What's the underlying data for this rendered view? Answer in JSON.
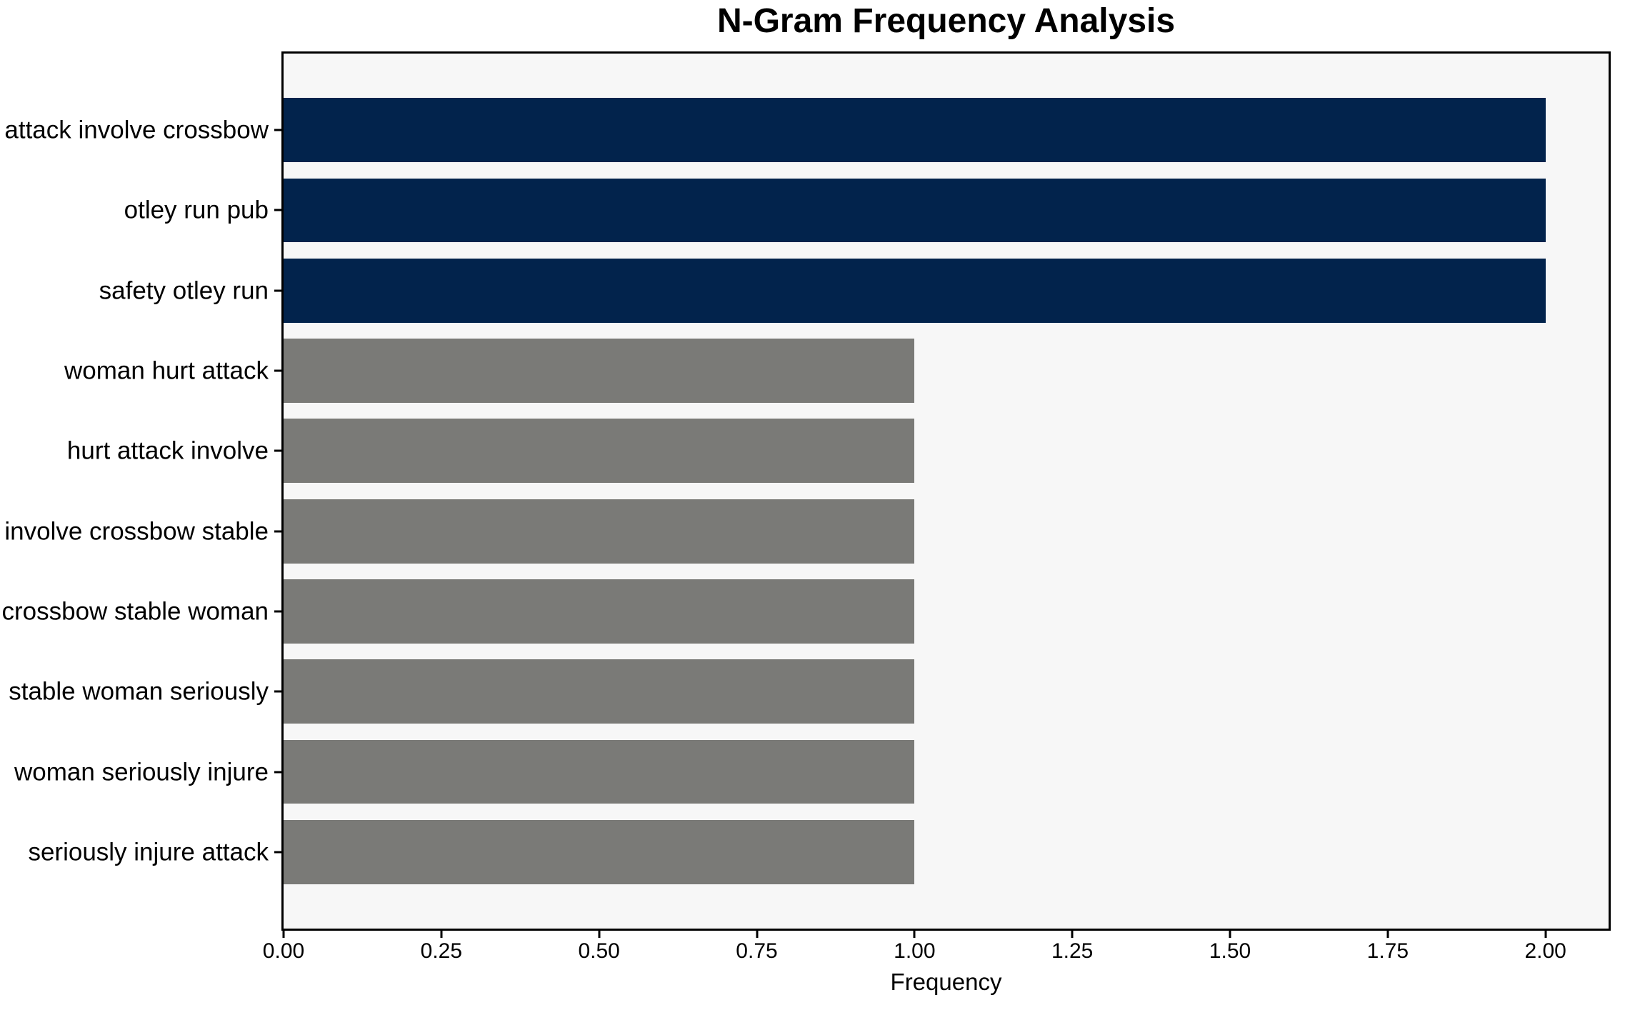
{
  "chart_data": {
    "type": "bar",
    "orientation": "horizontal",
    "title": "N-Gram Frequency Analysis",
    "xlabel": "Frequency",
    "ylabel": "",
    "categories": [
      "attack involve crossbow",
      "otley run pub",
      "safety otley run",
      "woman hurt attack",
      "hurt attack involve",
      "involve crossbow stable",
      "crossbow stable woman",
      "stable woman seriously",
      "woman seriously injure",
      "seriously injure attack"
    ],
    "values": [
      2,
      2,
      2,
      1,
      1,
      1,
      1,
      1,
      1,
      1
    ],
    "bar_colors": [
      "#02234c",
      "#02234c",
      "#02234c",
      "#7a7a77",
      "#7a7a77",
      "#7a7a77",
      "#7a7a77",
      "#7a7a77",
      "#7a7a77",
      "#7a7a77"
    ],
    "xlim": [
      0,
      2.1
    ],
    "xtick_values": [
      0,
      0.25,
      0.5,
      0.75,
      1.0,
      1.25,
      1.5,
      1.75,
      2.0
    ],
    "xticks": [
      "0.00",
      "0.25",
      "0.50",
      "0.75",
      "1.00",
      "1.25",
      "1.50",
      "1.75",
      "2.00"
    ],
    "grid": false,
    "legend": false,
    "colors": {
      "highlight": "#02234c",
      "muted": "#7a7a77",
      "plot_background": "#f7f7f7",
      "figure_background": "#ffffff",
      "axis": "#000000",
      "text": "#000000"
    }
  }
}
